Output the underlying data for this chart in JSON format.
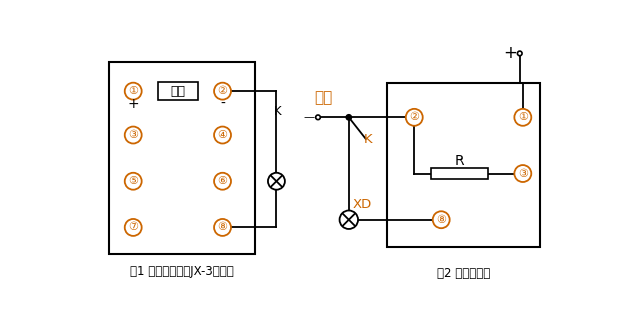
{
  "fig1_label": "图1 嵌入式继电器JX-3端子图",
  "fig2_label": "图2 试验接线图",
  "power_label": "电源",
  "background": "#ffffff",
  "line_color": "#000000",
  "circle_color": "#cc6600",
  "font_color": "#000000",
  "fig1_caption_color": "#000000",
  "fig2_caption_color": "#000000"
}
